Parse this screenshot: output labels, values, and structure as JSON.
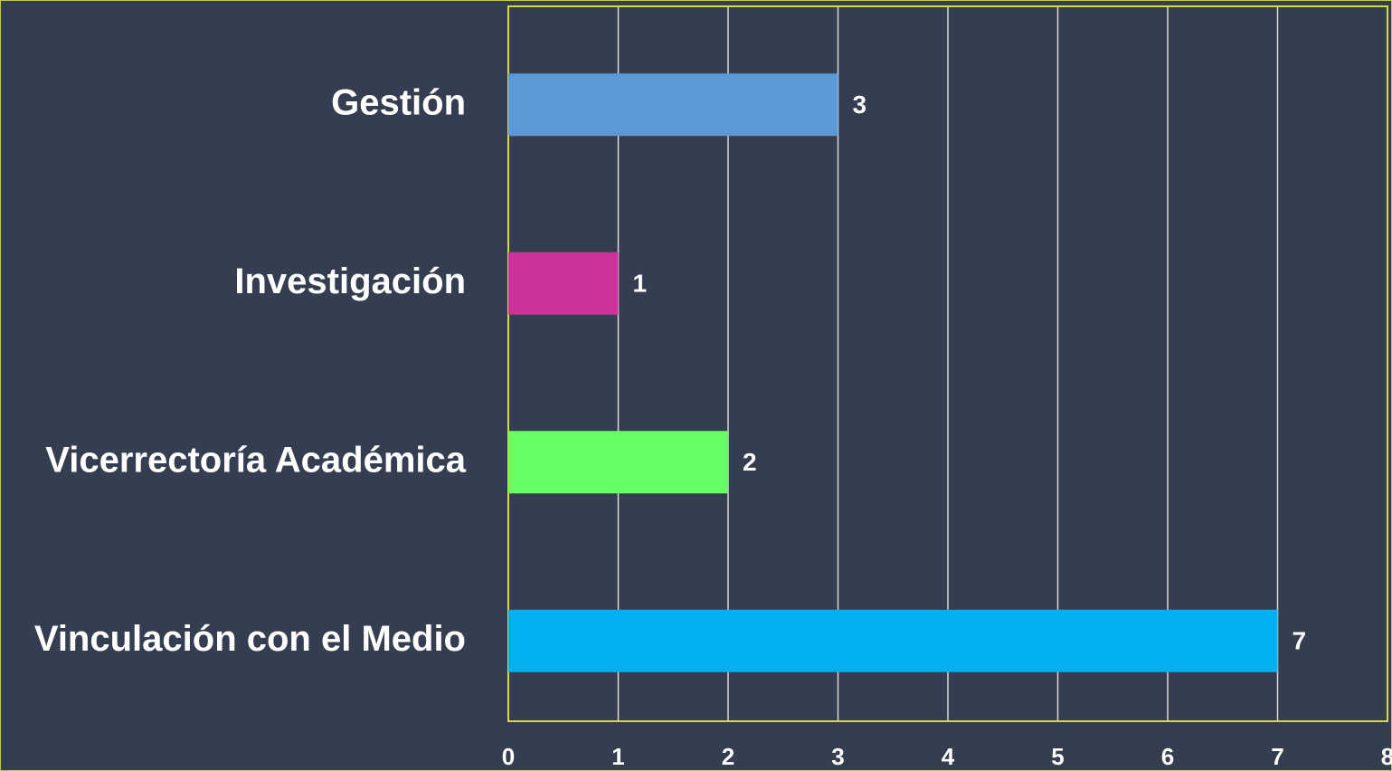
{
  "chart_data": {
    "type": "hbar",
    "categories": [
      "Gestión",
      "Investigación",
      "Vicerrectoría Académica",
      "Vinculación con el Medio"
    ],
    "values": [
      3,
      1,
      2,
      7
    ],
    "colors": [
      "#5b9bd5",
      "#cc3399",
      "#66ff66",
      "#00b0f0"
    ],
    "xlim": [
      0,
      8
    ],
    "xticks": [
      0,
      1,
      2,
      3,
      4,
      5,
      6,
      7,
      8
    ],
    "grid": true
  }
}
